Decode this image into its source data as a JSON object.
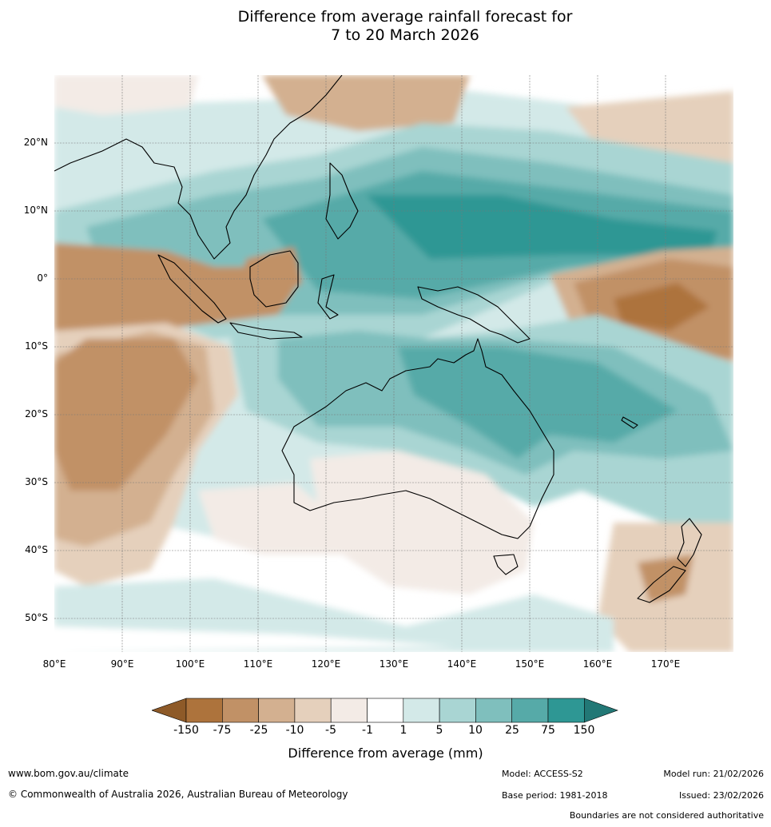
{
  "title_line1": "Difference from average rainfall forecast for",
  "title_line2": "7 to 20 March 2026",
  "map": {
    "lat_labels": [
      "20°N",
      "10°N",
      "0°",
      "10°S",
      "20°S",
      "30°S",
      "40°S",
      "50°S"
    ],
    "lon_labels": [
      "80°E",
      "90°E",
      "100°E",
      "110°E",
      "120°E",
      "130°E",
      "140°E",
      "150°E",
      "160°E",
      "170°E"
    ]
  },
  "colorbar": {
    "ticks": [
      "-150",
      "-75",
      "-25",
      "-10",
      "-5",
      "-1",
      "1",
      "5",
      "10",
      "25",
      "75",
      "150"
    ],
    "colors": [
      "#8e5a28",
      "#ad733c",
      "#c19166",
      "#d3b090",
      "#e5d0bc",
      "#f3ebe6",
      "#ffffff",
      "#d3e9e8",
      "#a9d5d3",
      "#7fbfbd",
      "#56aaa8",
      "#2e9794",
      "#227876"
    ],
    "label": "Difference from average (mm)"
  },
  "footer": {
    "url": "www.bom.gov.au/climate",
    "copyright": "© Commonwealth of Australia 2026, Australian Bureau of Meteorology",
    "model": "Model: ACCESS-S2",
    "base_period": "Base period: 1981-2018",
    "model_run": "Model run: 21/02/2026",
    "issued": "Issued: 23/02/2026",
    "disclaimer": "Boundaries are not considered authoritative"
  }
}
